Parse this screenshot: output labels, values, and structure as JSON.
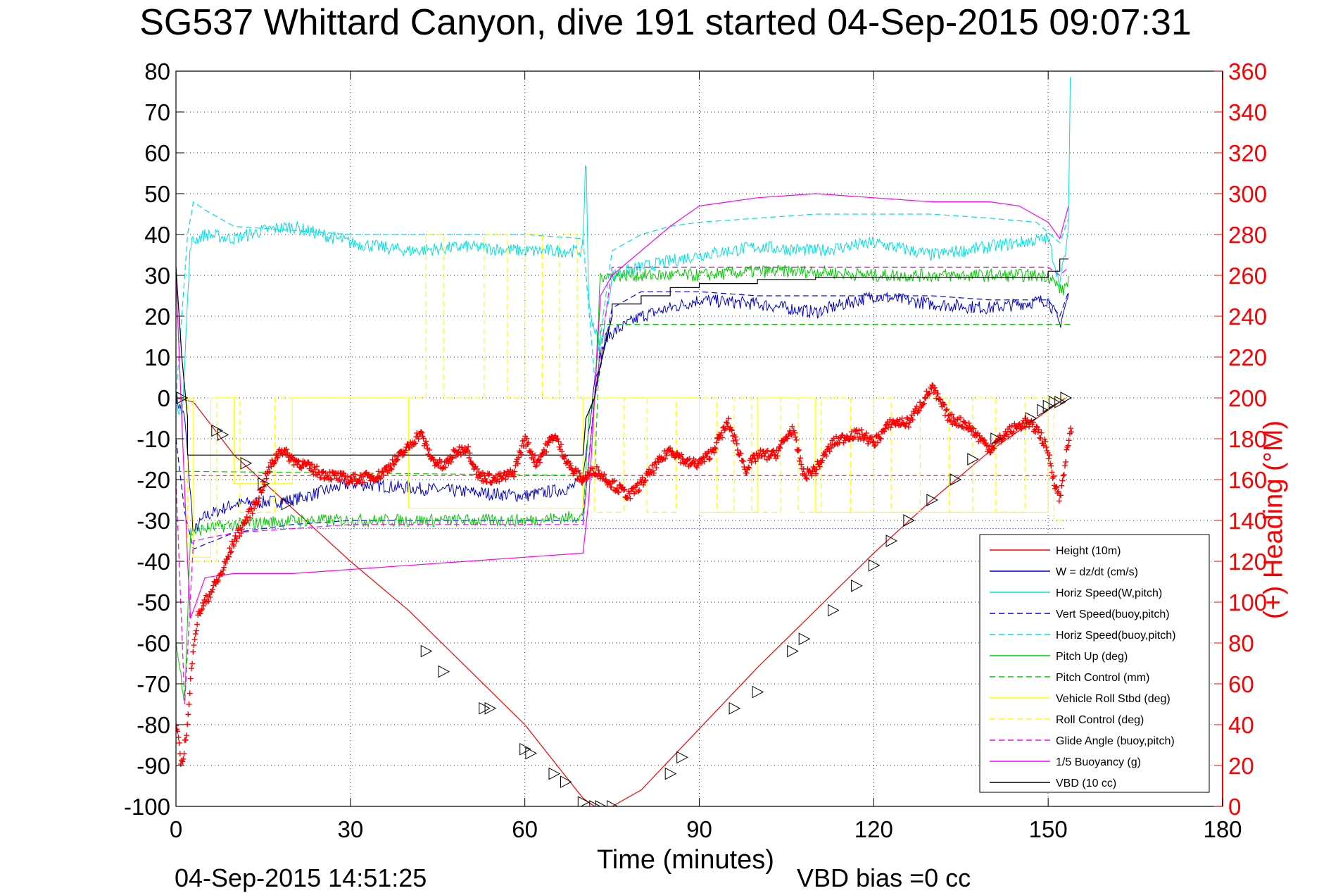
{
  "title": "SG537 Whittard Canyon, dive 191 started 04-Sep-2015 09:07:31",
  "xlabel": "Time (minutes)",
  "timestamp": "04-Sep-2015 14:51:25",
  "vbd_bias": "VBD bias =0 cc",
  "y2label": "(+) Heading (°M)",
  "chart_data": {
    "type": "line",
    "xlim": [
      0,
      180
    ],
    "ylim": [
      -100,
      80
    ],
    "y2lim": [
      0,
      360
    ],
    "xticks": [
      0,
      30,
      60,
      90,
      120,
      150,
      180
    ],
    "yticks": [
      80,
      70,
      60,
      50,
      40,
      30,
      20,
      10,
      0,
      -10,
      -20,
      -30,
      -40,
      -50,
      -60,
      -70,
      -80,
      -90,
      -100
    ],
    "y2ticks": [
      360,
      340,
      320,
      300,
      280,
      260,
      240,
      220,
      200,
      180,
      160,
      140,
      120,
      100,
      80,
      60,
      40,
      20,
      0
    ],
    "grid": true,
    "legend_position": "bottom-right",
    "series": [
      {
        "name": "Height (10m)",
        "color": "#ff0000",
        "style": "solid",
        "width": 1.2,
        "x": [
          0,
          3,
          10,
          20,
          30,
          40,
          50,
          60,
          65,
          70,
          72,
          75,
          80,
          90,
          100,
          110,
          120,
          130,
          140,
          150,
          153
        ],
        "y": [
          0,
          -1,
          -14,
          -27,
          -40,
          -52,
          -66,
          -80,
          -89,
          -98,
          -100,
          -100,
          -96,
          -81,
          -66,
          -52,
          -38,
          -25,
          -13,
          -3,
          0
        ]
      },
      {
        "name": "W = dz/dt (cm/s)",
        "color": "#0000cc",
        "style": "noisy",
        "width": 1,
        "x": [
          0,
          1.5,
          3,
          5,
          10,
          20,
          30,
          40,
          50,
          60,
          68,
          70,
          72,
          74,
          80,
          90,
          100,
          110,
          120,
          130,
          140,
          150,
          152,
          153.5
        ],
        "y": [
          0,
          -5,
          -33,
          -29,
          -26,
          -25,
          -21,
          -22,
          -23,
          -24,
          -22,
          -20,
          5,
          15,
          20,
          24,
          23,
          21,
          25,
          23,
          22,
          24,
          18,
          25
        ]
      },
      {
        "name": "Horiz Speed(W,pitch)",
        "color": "#00e0e0",
        "style": "noisy",
        "width": 1,
        "x": [
          0,
          1,
          2.5,
          5,
          10,
          15,
          20,
          30,
          40,
          50,
          60,
          70,
          70.5,
          71,
          73,
          75,
          80,
          90,
          100,
          110,
          120,
          130,
          140,
          150,
          152,
          153.5,
          153.8
        ],
        "y": [
          0,
          -5,
          38,
          40,
          39,
          41,
          42,
          38,
          36,
          37,
          36,
          36,
          62,
          22,
          12,
          30,
          32,
          35,
          37,
          36,
          38,
          35,
          37,
          39,
          28,
          40,
          80
        ]
      },
      {
        "name": "Vert Speed(buoy,pitch)",
        "color": "#0000ff",
        "style": "dashed",
        "width": 1.2,
        "x": [
          0,
          1.5,
          3,
          10,
          20,
          30,
          40,
          50,
          60,
          70,
          72,
          75,
          80,
          90,
          100,
          110,
          120,
          130,
          140,
          150,
          152,
          153.5
        ],
        "y": [
          -10,
          -28,
          -37,
          -33,
          -31,
          -30,
          -30,
          -30,
          -30,
          -30,
          0,
          22,
          26,
          26,
          25,
          25,
          25,
          25,
          24,
          24,
          20,
          26
        ]
      },
      {
        "name": "Horiz Speed(buoy,pitch)",
        "color": "#00e0e0",
        "style": "dashed",
        "width": 1.2,
        "x": [
          0,
          2,
          3,
          5,
          10,
          20,
          30,
          40,
          50,
          60,
          70,
          72,
          75,
          80,
          85,
          90,
          100,
          110,
          120,
          130,
          140,
          148,
          152,
          153.5
        ],
        "y": [
          0,
          40,
          48,
          46,
          42,
          41,
          40,
          40,
          40,
          40,
          39,
          5,
          36,
          40,
          42,
          43,
          44,
          45,
          45,
          45,
          44,
          43,
          38,
          44
        ]
      },
      {
        "name": "Pitch Up (deg)",
        "color": "#00cc00",
        "style": "noisy",
        "width": 1,
        "x": [
          0,
          1.5,
          2.5,
          5,
          10,
          20,
          30,
          40,
          50,
          60,
          70,
          71,
          72,
          73,
          80,
          90,
          100,
          110,
          120,
          130,
          140,
          150,
          152.5,
          153.5
        ],
        "y": [
          -60,
          -74,
          -33,
          -32,
          -31,
          -30,
          -30,
          -30,
          -30,
          -30,
          -29,
          -5,
          0,
          30,
          30,
          30,
          31,
          31,
          30,
          30,
          30,
          30,
          26,
          29
        ]
      },
      {
        "name": "Pitch Control (mm)",
        "color": "#00cc00",
        "style": "dashed",
        "width": 1.2,
        "x": [
          0,
          1.5,
          3,
          72,
          73,
          153,
          154
        ],
        "y": [
          -18,
          -18,
          -18,
          -19,
          18,
          18,
          18
        ]
      },
      {
        "name": "Vehicle Roll Stbd (deg)",
        "color": "#ffff00",
        "style": "solid",
        "width": 1,
        "x": [
          0,
          3,
          3,
          6,
          6,
          10,
          10,
          20,
          20,
          40,
          40,
          70,
          70,
          90,
          90,
          100,
          100,
          110,
          110,
          150,
          150,
          153
        ],
        "y": [
          0,
          0,
          -39,
          -39,
          0,
          0,
          -21,
          -21,
          0,
          0,
          -27,
          -27,
          0,
          0,
          -28,
          -28,
          0,
          0,
          -28,
          -28,
          0,
          0
        ]
      },
      {
        "name": "Roll Control (deg)",
        "color": "#ffff00",
        "style": "dashed",
        "width": 1.2,
        "x": [
          0,
          2,
          2,
          7,
          7,
          11,
          11,
          17,
          17,
          43,
          43,
          46,
          46,
          53,
          53,
          57,
          57,
          60,
          60,
          63,
          63,
          66,
          66,
          69,
          69,
          72,
          72,
          77,
          77,
          81,
          81,
          86,
          86,
          93,
          93,
          96,
          96,
          99,
          99,
          104,
          104,
          107,
          107,
          111,
          111,
          116,
          116,
          120,
          120,
          123,
          123,
          128,
          128,
          133,
          133,
          137,
          137,
          141,
          141,
          146,
          146,
          151,
          151,
          153
        ],
        "y": [
          0,
          0,
          -40,
          -40,
          0,
          0,
          -28,
          -28,
          0,
          0,
          40,
          40,
          0,
          0,
          40,
          40,
          0,
          0,
          40,
          40,
          0,
          0,
          40,
          40,
          0,
          0,
          -28,
          -28,
          0,
          0,
          -28,
          -28,
          0,
          0,
          -28,
          -28,
          0,
          0,
          -28,
          -28,
          0,
          0,
          -28,
          -28,
          0,
          0,
          -28,
          -28,
          0,
          0,
          -28,
          -28,
          0,
          0,
          -28,
          -28,
          0,
          0,
          -28,
          -28,
          0,
          0,
          -30,
          -30
        ]
      },
      {
        "name": "Glide Angle (buoy,pitch)",
        "color": "#ff00ff",
        "style": "dashed",
        "width": 1.2,
        "x": [
          0,
          1.5,
          3,
          10,
          20,
          30,
          40,
          50,
          60,
          70,
          72,
          75,
          80,
          90,
          100,
          110,
          120,
          130,
          140,
          150,
          152,
          153.5
        ],
        "y": [
          -20,
          -75,
          -35,
          -33,
          -32,
          -31,
          -31,
          -31,
          -31,
          -31,
          0,
          32,
          32,
          32,
          32,
          32,
          32,
          32,
          32,
          32,
          30,
          32
        ]
      },
      {
        "name": "1/5 Buoyancy (g)",
        "color": "#ff00ff",
        "style": "solid",
        "width": 1.2,
        "x": [
          0,
          2,
          2.5,
          5,
          10,
          20,
          30,
          40,
          50,
          60,
          70,
          71,
          72,
          73,
          75,
          80,
          85,
          90,
          95,
          100,
          110,
          120,
          130,
          140,
          145,
          150,
          152,
          153.5
        ],
        "y": [
          30,
          -40,
          -54,
          -44,
          -43,
          -43,
          -42,
          -41,
          -40,
          -39,
          -38,
          -25,
          0,
          25,
          30,
          36,
          42,
          47,
          48,
          49,
          50,
          49,
          48,
          48,
          47,
          43,
          39,
          47
        ]
      },
      {
        "name": "VBD (10 cc)",
        "color": "#000000",
        "style": "solid",
        "width": 1.2,
        "x": [
          0,
          1,
          2,
          2,
          70,
          70.5,
          72,
          72.5,
          75,
          75,
          80,
          80,
          85,
          85,
          90,
          90,
          100,
          100,
          110,
          110,
          150,
          150,
          152,
          152,
          153.5
        ],
        "y": [
          32,
          10,
          -5,
          -14,
          -14,
          -5,
          0,
          5,
          20,
          23,
          23,
          25,
          25,
          27,
          27,
          28,
          28,
          29,
          29,
          29.5,
          29.5,
          31,
          31,
          34,
          34
        ]
      }
    ],
    "heading": {
      "axis": "right",
      "color": "#ff0000",
      "marker": "+",
      "x": [
        0,
        1,
        2,
        3,
        4,
        6,
        8,
        10,
        12,
        14,
        16,
        18,
        20,
        25,
        30,
        35,
        38,
        40,
        42,
        44,
        46,
        48,
        50,
        52,
        55,
        58,
        60,
        62,
        65,
        68,
        70,
        72,
        75,
        78,
        80,
        82,
        85,
        88,
        90,
        92,
        95,
        98,
        100,
        103,
        106,
        108,
        110,
        113,
        116,
        118,
        120,
        123,
        126,
        130,
        133,
        136,
        140,
        143,
        146,
        148,
        149,
        150,
        151,
        152,
        153,
        154
      ],
      "y": [
        40,
        20,
        40,
        80,
        95,
        105,
        115,
        130,
        140,
        150,
        165,
        175,
        170,
        163,
        160,
        162,
        170,
        176,
        183,
        170,
        166,
        173,
        176,
        162,
        160,
        163,
        180,
        168,
        182,
        165,
        160,
        165,
        158,
        152,
        158,
        165,
        175,
        168,
        168,
        173,
        188,
        165,
        172,
        172,
        185,
        162,
        165,
        178,
        182,
        182,
        178,
        188,
        188,
        205,
        190,
        187,
        175,
        183,
        188,
        185,
        180,
        173,
        160,
        150,
        170,
        185
      ]
    },
    "markers": {
      "symbol": "triangle",
      "x": [
        1,
        7,
        8,
        12,
        15,
        19,
        43,
        46,
        53,
        54,
        60,
        61,
        65,
        67,
        70,
        72,
        73,
        75,
        85,
        87,
        96,
        100,
        106,
        108,
        113,
        117,
        120,
        123,
        126,
        130,
        134,
        137,
        141,
        147,
        149,
        150,
        151,
        152,
        153
      ],
      "y": [
        0,
        -8,
        -9,
        -16,
        -21,
        -26,
        -62,
        -67,
        -76,
        -76,
        -86,
        -87,
        -92,
        -94,
        -99,
        -100,
        -100,
        -100,
        -92,
        -88,
        -76,
        -72,
        -62,
        -59,
        -52,
        -46,
        -41,
        -35,
        -30,
        -25,
        -20,
        -15,
        -10,
        -5,
        -3,
        -2,
        -1,
        -1,
        0
      ]
    },
    "ref_lines": [
      {
        "y": -19,
        "color": "#ff0000",
        "style": "dashed"
      },
      {
        "y": -32,
        "color": "#0000ff",
        "style": "dotted"
      }
    ]
  }
}
